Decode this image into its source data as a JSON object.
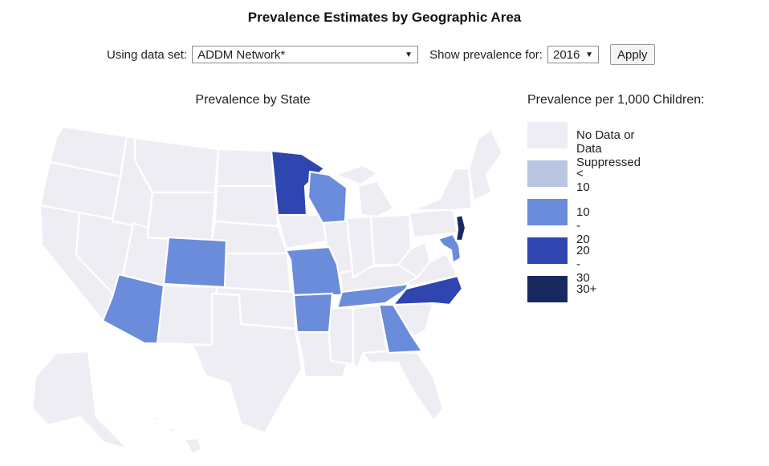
{
  "header": {
    "title": "Prevalence Estimates by Geographic Area"
  },
  "controls": {
    "dataset_label": "Using data set:",
    "dataset_value": "ADDM Network*",
    "year_label": "Show prevalence for:",
    "year_value": "2016",
    "apply_label": "Apply"
  },
  "map": {
    "title": "Prevalence by State",
    "colors": {
      "no_data": "#eeedf3",
      "lt10": "#b9c6e2",
      "10to20": "#6b8bdb",
      "20to30": "#2f46b0",
      "30plus": "#172a60",
      "border": "#ffffff"
    },
    "highlighted_states": [
      {
        "state": "Minnesota",
        "range": "20 - 30"
      },
      {
        "state": "Wisconsin",
        "range": "10 - 20"
      },
      {
        "state": "Colorado",
        "range": "10 - 20"
      },
      {
        "state": "Arizona",
        "range": "10 - 20"
      },
      {
        "state": "Missouri",
        "range": "10 - 20"
      },
      {
        "state": "Arkansas",
        "range": "10 - 20"
      },
      {
        "state": "Tennessee",
        "range": "10 - 20"
      },
      {
        "state": "Georgia",
        "range": "10 - 20"
      },
      {
        "state": "North Carolina",
        "range": "20 - 30"
      },
      {
        "state": "Maryland",
        "range": "10 - 20"
      },
      {
        "state": "New Jersey",
        "range": "30+"
      }
    ]
  },
  "legend": {
    "title": "Prevalence per 1,000 Children:",
    "items": [
      {
        "label": "No Data or Data Suppressed",
        "color": "#eeedf3"
      },
      {
        "label": "< 10",
        "color": "#b9c6e2"
      },
      {
        "label": "10 - 20",
        "color": "#6b8bdb"
      },
      {
        "label": "20 - 30",
        "color": "#2f46b0"
      },
      {
        "label": "30+",
        "color": "#172a60"
      }
    ]
  }
}
